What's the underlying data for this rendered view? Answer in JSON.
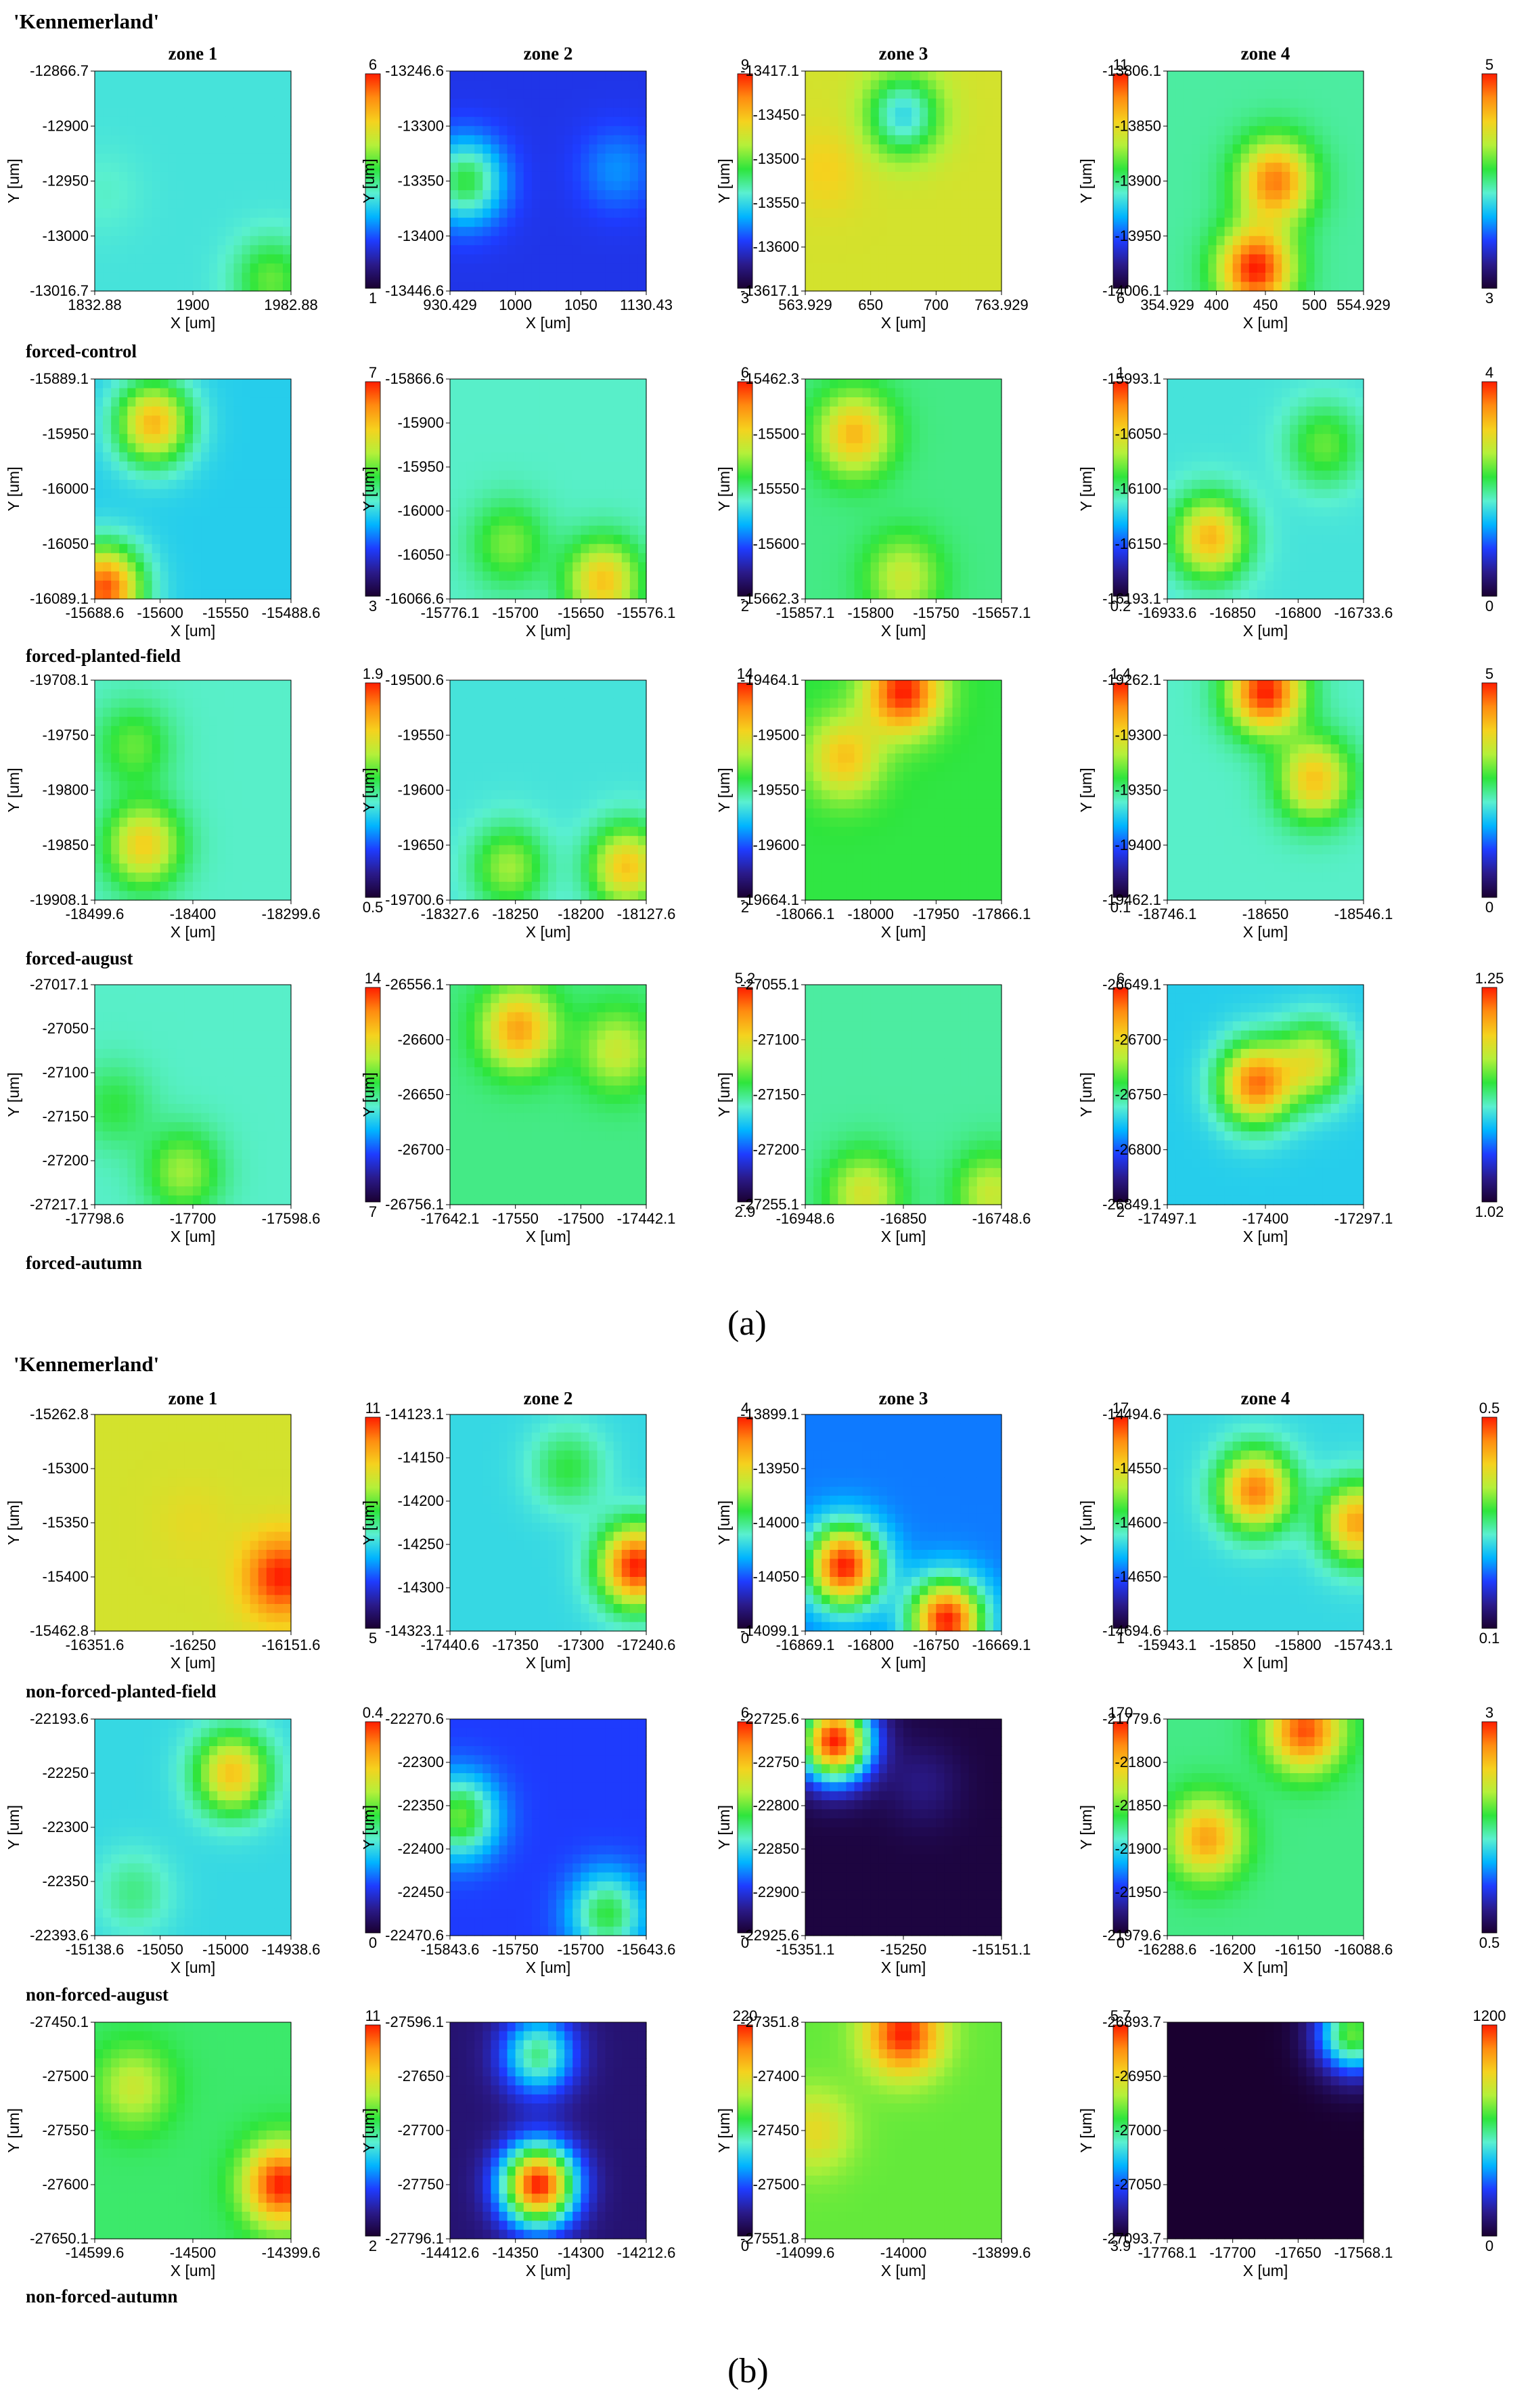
{
  "titles": {
    "a": "'Kennemerland'",
    "b": "'Kennemerland'"
  },
  "panel_labels": {
    "a": "(a)",
    "b": "(b)"
  },
  "zones": [
    "zone 1",
    "zone 2",
    "zone 3",
    "zone 4"
  ],
  "axis_labels": {
    "y": "Y [um]",
    "x": "X [um]"
  },
  "colormap": [
    "#1a0030",
    "#2a1a8a",
    "#1e3cff",
    "#00b4ff",
    "#5af0d0",
    "#2ee53c",
    "#b4f03a",
    "#f5d21e",
    "#ff8c10",
    "#ff1e00"
  ],
  "row_labels": {
    "a": [
      "forced-control",
      "forced-planted-field",
      "forced-august",
      "forced-autumn"
    ],
    "b": [
      "non-forced-planted-field",
      "non-forced-august",
      "non-forced-autumn"
    ]
  },
  "chart_data": {
    "type": "heatmap",
    "panels": {
      "a": [
        [
          {
            "yt": [
              "-12866.7",
              "-12900",
              "-12950",
              "-13000",
              "-13016.7"
            ],
            "xt": [
              "1832.88",
              "1900",
              "1982.88"
            ],
            "cb": [
              "6",
              "1"
            ],
            "hot": [
              [
                0.05,
                0.55,
                0.45
              ],
              [
                0.9,
                0.95,
                0.6
              ]
            ],
            "base": 0.42
          },
          {
            "yt": [
              "-13246.6",
              "-13300",
              "-13350",
              "-13400",
              "-13446.6"
            ],
            "xt": [
              "930.429",
              "1000",
              "1050",
              "1130.43"
            ],
            "cb": [
              "9",
              "3"
            ],
            "hot": [
              [
                0.08,
                0.5,
                0.55
              ],
              [
                0.85,
                0.45,
                0.3
              ]
            ],
            "base": 0.2
          },
          {
            "yt": [
              "-13417.1",
              "-13450",
              "-13500",
              "-13550",
              "-13600",
              "-13617.1"
            ],
            "xt": [
              "563.929",
              "650",
              "700",
              "763.929"
            ],
            "cb": [
              "11",
              "6"
            ],
            "hot": [
              [
                0.1,
                0.45,
                0.78
              ],
              [
                0.5,
                0.2,
                0.4
              ]
            ],
            "base": 0.72
          },
          {
            "yt": [
              "-13806.1",
              "-13850",
              "-13900",
              "-13950",
              "-14006.1"
            ],
            "xt": [
              "354.929",
              "400",
              "450",
              "500",
              "554.929"
            ],
            "cb": [
              "5",
              "3"
            ],
            "hot": [
              [
                0.55,
                0.5,
                0.9
              ],
              [
                0.45,
                0.9,
                1.0
              ]
            ],
            "base": 0.48
          }
        ],
        [
          {
            "yt": [
              "-15889.1",
              "-15950",
              "-16000",
              "-16050",
              "-16089.1"
            ],
            "xt": [
              "-15688.6",
              "-15600",
              "-15550",
              "-15488.6"
            ],
            "cb": [
              "7",
              "3"
            ],
            "hot": [
              [
                0.3,
                0.2,
                0.82
              ],
              [
                0.05,
                0.95,
                0.95
              ]
            ],
            "base": 0.38
          },
          {
            "yt": [
              "-15866.6",
              "-15900",
              "-15950",
              "-16000",
              "-16050",
              "-16066.6"
            ],
            "xt": [
              "-15776.1",
              "-15700",
              "-15650",
              "-15576.1"
            ],
            "cb": [
              "6",
              "2"
            ],
            "hot": [
              [
                0.3,
                0.75,
                0.62
              ],
              [
                0.78,
                0.92,
                0.8
              ]
            ],
            "base": 0.45
          },
          {
            "yt": [
              "-15462.3",
              "-15500",
              "-15550",
              "-15600",
              "-15662.3"
            ],
            "xt": [
              "-15857.1",
              "-15800",
              "-15750",
              "-15657.1"
            ],
            "cb": [
              "1",
              "0.2"
            ],
            "hot": [
              [
                0.25,
                0.25,
                0.82
              ],
              [
                0.5,
                0.9,
                0.7
              ]
            ],
            "base": 0.5
          },
          {
            "yt": [
              "-15993.1",
              "-16050",
              "-16100",
              "-16150",
              "-16193.1"
            ],
            "xt": [
              "-16933.6",
              "-16850",
              "-16800",
              "-16733.6"
            ],
            "cb": [
              "4",
              "0"
            ],
            "hot": [
              [
                0.22,
                0.72,
                0.82
              ],
              [
                0.8,
                0.3,
                0.6
              ]
            ],
            "base": 0.42
          }
        ],
        [
          {
            "yt": [
              "-19708.1",
              "-19750",
              "-19800",
              "-19850",
              "-19908.1"
            ],
            "xt": [
              "-18499.6",
              "-18400",
              "-18299.6"
            ],
            "cb": [
              "1.9",
              "0.5"
            ],
            "hot": [
              [
                0.25,
                0.75,
                0.78
              ],
              [
                0.2,
                0.3,
                0.6
              ]
            ],
            "base": 0.45
          },
          {
            "yt": [
              "-19500.6",
              "-19550",
              "-19600",
              "-19650",
              "-19700.6"
            ],
            "xt": [
              "-18327.6",
              "-18250",
              "-18200",
              "-18127.6"
            ],
            "cb": [
              "14",
              "2"
            ],
            "hot": [
              [
                0.9,
                0.85,
                0.8
              ],
              [
                0.3,
                0.85,
                0.65
              ]
            ],
            "base": 0.42
          },
          {
            "yt": [
              "-19464.1",
              "-19500",
              "-19550",
              "-19600",
              "-19664.1"
            ],
            "xt": [
              "-18066.1",
              "-18000",
              "-17950",
              "-17866.1"
            ],
            "cb": [
              "1.4",
              "0.1"
            ],
            "hot": [
              [
                0.5,
                0.05,
                1.0
              ],
              [
                0.2,
                0.35,
                0.8
              ]
            ],
            "base": 0.55
          },
          {
            "yt": [
              "-19262.1",
              "-19300",
              "-19350",
              "-19400",
              "-19462.1"
            ],
            "xt": [
              "-18746.1",
              "-18650",
              "-18546.1"
            ],
            "cb": [
              "5",
              "0"
            ],
            "hot": [
              [
                0.5,
                0.05,
                1.0
              ],
              [
                0.75,
                0.45,
                0.8
              ]
            ],
            "base": 0.45
          }
        ],
        [
          {
            "yt": [
              "-27017.1",
              "-27050",
              "-27100",
              "-27150",
              "-27200",
              "-27217.1"
            ],
            "xt": [
              "-17798.6",
              "-17700",
              "-17598.6"
            ],
            "cb": [
              "14",
              "7"
            ],
            "hot": [
              [
                0.45,
                0.85,
                0.65
              ],
              [
                0.1,
                0.55,
                0.55
              ]
            ],
            "base": 0.45
          },
          {
            "yt": [
              "-26556.1",
              "-26600",
              "-26650",
              "-26700",
              "-26756.1"
            ],
            "xt": [
              "-17642.1",
              "-17550",
              "-17500",
              "-17442.1"
            ],
            "cb": [
              "5.2",
              "2.9"
            ],
            "hot": [
              [
                0.35,
                0.2,
                0.85
              ],
              [
                0.85,
                0.3,
                0.7
              ]
            ],
            "base": 0.5
          },
          {
            "yt": [
              "-27055.1",
              "-27100",
              "-27150",
              "-27200",
              "-27255.1"
            ],
            "xt": [
              "-16948.6",
              "-16850",
              "-16748.6"
            ],
            "cb": [
              "6",
              "2"
            ],
            "hot": [
              [
                0.3,
                0.95,
                0.72
              ],
              [
                0.95,
                0.95,
                0.7
              ]
            ],
            "base": 0.48
          },
          {
            "yt": [
              "-26649.1",
              "-26700",
              "-26750",
              "-26800",
              "-26849.1"
            ],
            "xt": [
              "-17497.1",
              "-17400",
              "-17297.1"
            ],
            "cb": [
              "1.25",
              "1.02"
            ],
            "hot": [
              [
                0.45,
                0.45,
                0.9
              ],
              [
                0.75,
                0.35,
                0.7
              ]
            ],
            "base": 0.38
          }
        ]
      ],
      "b": [
        [
          {
            "yt": [
              "-15262.8",
              "-15300",
              "-15350",
              "-15400",
              "-15462.8"
            ],
            "xt": [
              "-16351.6",
              "-16250",
              "-16151.6"
            ],
            "cb": [
              "11",
              "5"
            ],
            "hot": [
              [
                0.95,
                0.75,
                1.0
              ],
              [
                0.5,
                0.5,
                0.75
              ]
            ],
            "base": 0.72
          },
          {
            "yt": [
              "-14123.1",
              "-14150",
              "-14200",
              "-14250",
              "-14300",
              "-14323.1"
            ],
            "xt": [
              "-17440.6",
              "-17350",
              "-17300",
              "-17240.6"
            ],
            "cb": [
              "4",
              "0"
            ],
            "hot": [
              [
                0.95,
                0.7,
                1.0
              ],
              [
                0.6,
                0.25,
                0.55
              ]
            ],
            "base": 0.4
          },
          {
            "yt": [
              "-13899.1",
              "-13950",
              "-14000",
              "-14050",
              "-14099.1"
            ],
            "xt": [
              "-16869.1",
              "-16800",
              "-16750",
              "-16669.1"
            ],
            "cb": [
              "17",
              "1"
            ],
            "hot": [
              [
                0.2,
                0.7,
                1.0
              ],
              [
                0.72,
                0.95,
                1.0
              ]
            ],
            "base": 0.28
          },
          {
            "yt": [
              "-14494.6",
              "-14550",
              "-14600",
              "-14650",
              "-14694.6"
            ],
            "xt": [
              "-15943.1",
              "-15850",
              "-15800",
              "-15743.1"
            ],
            "cb": [
              "0.5",
              "0.1"
            ],
            "hot": [
              [
                0.45,
                0.35,
                0.9
              ],
              [
                0.97,
                0.5,
                0.85
              ]
            ],
            "base": 0.4
          }
        ],
        [
          {
            "yt": [
              "-22193.6",
              "-22250",
              "-22300",
              "-22350",
              "-22393.6"
            ],
            "xt": [
              "-15138.6",
              "-15050",
              "-15000",
              "-14938.6"
            ],
            "cb": [
              "0.4",
              "0"
            ],
            "hot": [
              [
                0.7,
                0.25,
                0.8
              ],
              [
                0.2,
                0.8,
                0.5
              ]
            ],
            "base": 0.4
          },
          {
            "yt": [
              "-22270.6",
              "-22300",
              "-22350",
              "-22400",
              "-22450",
              "-22470.6"
            ],
            "xt": [
              "-15843.6",
              "-15750",
              "-15700",
              "-15643.6"
            ],
            "cb": [
              "6",
              "0"
            ],
            "hot": [
              [
                0.05,
                0.45,
                0.6
              ],
              [
                0.8,
                0.9,
                0.55
              ]
            ],
            "base": 0.22
          },
          {
            "yt": [
              "-22725.6",
              "-22750",
              "-22800",
              "-22850",
              "-22900",
              "-22925.6"
            ],
            "xt": [
              "-15351.1",
              "-15250",
              "-15151.1"
            ],
            "cb": [
              "170",
              "0"
            ],
            "hot": [
              [
                0.15,
                0.1,
                1.0
              ],
              [
                0.6,
                0.3,
                0.1
              ]
            ],
            "base": 0.02
          },
          {
            "yt": [
              "-21779.6",
              "-21800",
              "-21850",
              "-21900",
              "-21950",
              "-21979.6"
            ],
            "xt": [
              "-16288.6",
              "-16200",
              "-16150",
              "-16088.6"
            ],
            "cb": [
              "3",
              "0.5"
            ],
            "hot": [
              [
                0.7,
                0.05,
                0.95
              ],
              [
                0.2,
                0.55,
                0.85
              ]
            ],
            "base": 0.5
          }
        ],
        [
          {
            "yt": [
              "-27450.1",
              "-27500",
              "-27550",
              "-27600",
              "-27650.1"
            ],
            "xt": [
              "-14599.6",
              "-14500",
              "-14399.6"
            ],
            "cb": [
              "11",
              "2"
            ],
            "hot": [
              [
                0.95,
                0.75,
                1.0
              ],
              [
                0.2,
                0.3,
                0.7
              ]
            ],
            "base": 0.52
          },
          {
            "yt": [
              "-27596.1",
              "-27650",
              "-27700",
              "-27750",
              "-27796.1"
            ],
            "xt": [
              "-14412.6",
              "-14350",
              "-14300",
              "-14212.6"
            ],
            "cb": [
              "220",
              "0"
            ],
            "hot": [
              [
                0.45,
                0.75,
                1.0
              ],
              [
                0.45,
                0.15,
                0.5
              ]
            ],
            "base": 0.08
          },
          {
            "yt": [
              "-27351.8",
              "-27400",
              "-27450",
              "-27500",
              "-27551.8"
            ],
            "xt": [
              "-14099.6",
              "-14000",
              "-13899.6"
            ],
            "cb": [
              "5.7",
              "3.9"
            ],
            "hot": [
              [
                0.5,
                0.05,
                1.0
              ],
              [
                0.05,
                0.5,
                0.75
              ]
            ],
            "base": 0.6
          },
          {
            "yt": [
              "-26893.7",
              "-26950",
              "-27000",
              "-27050",
              "-27093.7"
            ],
            "xt": [
              "-17768.1",
              "-17700",
              "-17650",
              "-17568.1"
            ],
            "cb": [
              "1200",
              "0"
            ],
            "hot": [
              [
                0.95,
                0.05,
                0.6
              ]
            ],
            "base": 0.0
          }
        ]
      ]
    }
  }
}
